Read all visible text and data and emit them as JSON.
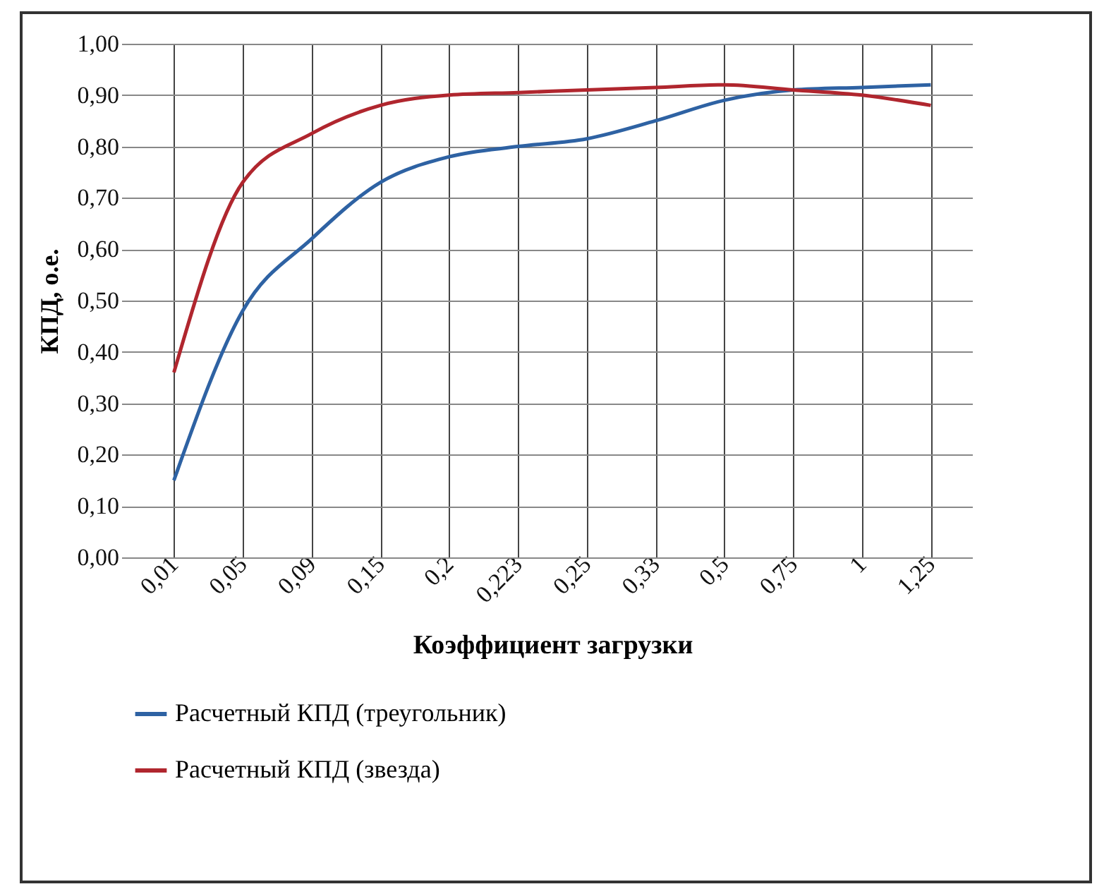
{
  "chart_data": {
    "type": "line",
    "xlabel": "Коэффициент загрузки",
    "ylabel": "КПД, о.е.",
    "categories": [
      "0,01",
      "0,05",
      "0,09",
      "0,15",
      "0,2",
      "0,223",
      "0,25",
      "0,33",
      "0,5",
      "0,75",
      "1",
      "1,25"
    ],
    "series": [
      {
        "name": "Расчетный КПД (треугольник)",
        "color": "#2e62a3",
        "values": [
          0.15,
          0.48,
          0.62,
          0.73,
          0.78,
          0.8,
          0.815,
          0.85,
          0.89,
          0.91,
          0.915,
          0.92
        ]
      },
      {
        "name": "Расчетный КПД (звезда)",
        "color": "#b0262e",
        "values": [
          0.36,
          0.73,
          0.825,
          0.88,
          0.9,
          0.905,
          0.91,
          0.915,
          0.92,
          0.91,
          0.9,
          0.88
        ]
      }
    ],
    "ylim": [
      0,
      1
    ],
    "yticks": [
      {
        "value": 0,
        "label": "0,00"
      },
      {
        "value": 0.1,
        "label": "0,10"
      },
      {
        "value": 0.2,
        "label": "0,20"
      },
      {
        "value": 0.3,
        "label": "0,30"
      },
      {
        "value": 0.4,
        "label": "0,40"
      },
      {
        "value": 0.5,
        "label": "0,50"
      },
      {
        "value": 0.6,
        "label": "0,60"
      },
      {
        "value": 0.7,
        "label": "0,70"
      },
      {
        "value": 0.8,
        "label": "0,80"
      },
      {
        "value": 0.9,
        "label": "0,90"
      },
      {
        "value": 1,
        "label": "1,00"
      }
    ],
    "grid": true,
    "legend": "bottom",
    "marker": "none",
    "line_style": "solid"
  }
}
